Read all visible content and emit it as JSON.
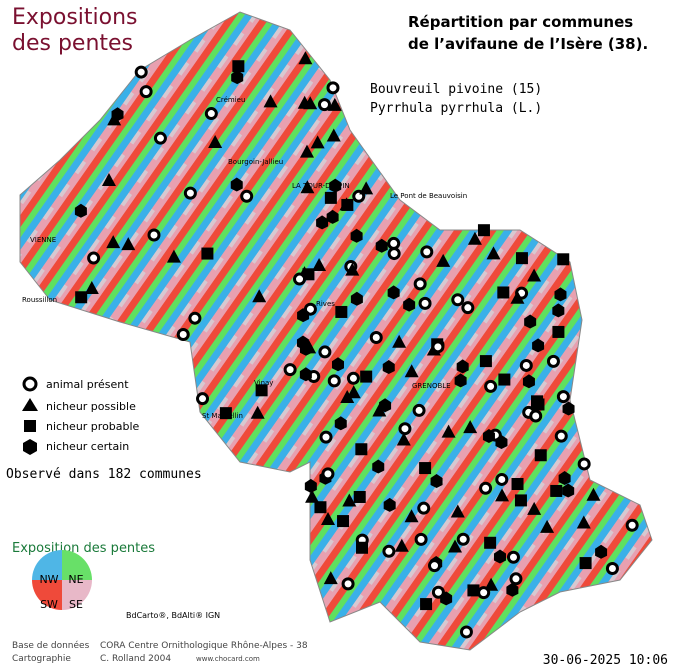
{
  "header": {
    "title_line1": "Expositions",
    "title_line2": "des pentes",
    "subtitle_line1": "Répartition par communes",
    "subtitle_line2": "de l’avifaune de l’Isère (38).",
    "species": "Bouvreuil pivoine  (15)",
    "latin": "Pyrrhula pyrrhula (L.)"
  },
  "legend": {
    "items": [
      "animal présent",
      "nicheur possible",
      "nicheur probable",
      "nicheur certain"
    ],
    "observed": "Observé dans 182 communes"
  },
  "exposition": {
    "title": "Exposition des pentes",
    "nw": "NW",
    "ne": "NE",
    "sw": "SW",
    "se": "SE"
  },
  "places": [
    "VIENNE",
    "LA TOUR-DU-PIN",
    "Bourgoin-Jallieu",
    "Crémieu",
    "Roussillon",
    "St Marcellin",
    "GRENOBLE",
    "Le Pont de Beauvoisin",
    "Vinay",
    "Rives"
  ],
  "footer": {
    "source": "BdCarto®, BdAlti® IGN",
    "db_label": "Base de données",
    "db_value": "CORA Centre Ornithologique Rhône-Alpes - 38",
    "carto_label": "Cartographie",
    "carto_value": "C. Rolland 2004",
    "site": "www.chocard.com",
    "date": "30-06-2025 10:06"
  }
}
